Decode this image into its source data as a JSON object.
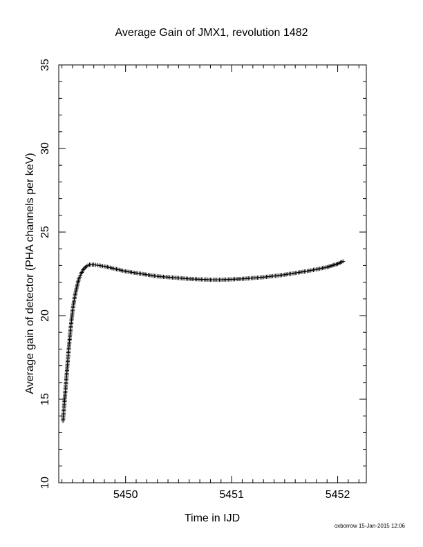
{
  "chart_data": {
    "type": "scatter",
    "title": "Average Gain of JMX1, revolution 1482",
    "xlabel": "Time in IJD",
    "ylabel": "Average gain of detector (PHA channels per keV)",
    "xlim": [
      5449.37,
      5452.27
    ],
    "ylim": [
      10,
      35
    ],
    "x_ticks": [
      5450,
      5451,
      5452
    ],
    "y_ticks": [
      10,
      15,
      20,
      25,
      30,
      35
    ],
    "x_tick_labels": [
      "5450",
      "5451",
      "5452"
    ],
    "y_tick_labels": [
      "10",
      "15",
      "20",
      "25",
      "30",
      "35"
    ],
    "marker": "plus",
    "grid": false,
    "series": [
      {
        "x": [
          5449.41,
          5449.42,
          5449.43,
          5449.44,
          5449.45,
          5449.46,
          5449.47,
          5449.48,
          5449.5,
          5449.52,
          5449.54,
          5449.56,
          5449.58,
          5449.6,
          5449.63,
          5449.66,
          5449.7,
          5449.75,
          5449.8,
          5449.9,
          5450.0,
          5450.1,
          5450.2,
          5450.3,
          5450.4,
          5450.5,
          5450.6,
          5450.7,
          5450.8,
          5450.9,
          5451.0,
          5451.1,
          5451.2,
          5451.3,
          5451.4,
          5451.5,
          5451.6,
          5451.7,
          5451.8,
          5451.9,
          5452.0,
          5452.05
        ],
        "y": [
          13.7,
          14.5,
          15.3,
          16.1,
          16.9,
          17.7,
          18.4,
          19.1,
          20.3,
          21.1,
          21.7,
          22.2,
          22.5,
          22.75,
          22.95,
          23.05,
          23.05,
          23.0,
          22.95,
          22.8,
          22.65,
          22.55,
          22.45,
          22.35,
          22.3,
          22.25,
          22.2,
          22.17,
          22.15,
          22.15,
          22.17,
          22.2,
          22.25,
          22.3,
          22.37,
          22.45,
          22.55,
          22.65,
          22.77,
          22.9,
          23.1,
          23.25
        ]
      }
    ]
  },
  "footer": {
    "credit": "oxborrow 15-Jan-2015 12:06"
  }
}
